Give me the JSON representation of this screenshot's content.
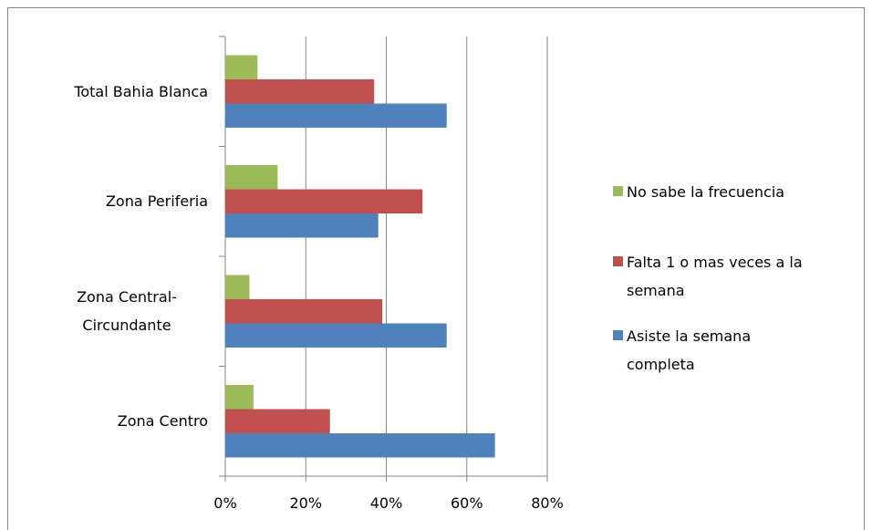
{
  "chart_data": {
    "type": "barh",
    "categories": [
      "Total Bahia Blanca",
      "Zona Periferia",
      "Zona Central-Circundante",
      "Zona Centro"
    ],
    "series": [
      {
        "name": "No sabe la frecuencia",
        "color": "#9bbb59",
        "values": [
          8,
          13,
          6,
          7
        ]
      },
      {
        "name": "Falta 1 o mas veces a la semana",
        "color": "#c0504d",
        "values": [
          37,
          49,
          39,
          26
        ]
      },
      {
        "name": "Asiste la semana completa",
        "color": "#4f81bd",
        "values": [
          55,
          38,
          55,
          67
        ]
      }
    ],
    "xlim": [
      0,
      80
    ],
    "xticks": [
      {
        "value": 0,
        "label": "0%"
      },
      {
        "value": 20,
        "label": "20%"
      },
      {
        "value": 40,
        "label": "40%"
      },
      {
        "value": 60,
        "label": "60%"
      },
      {
        "value": 80,
        "label": "80%"
      }
    ],
    "grid": true,
    "legend": "right"
  }
}
